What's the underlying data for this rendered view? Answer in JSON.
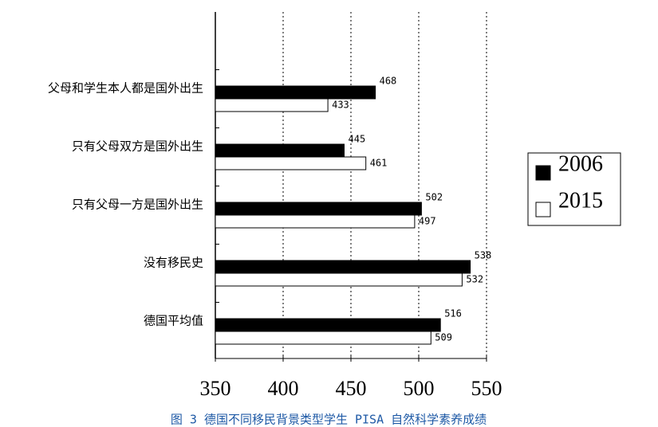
{
  "chart_data": {
    "type": "bar",
    "orientation": "horizontal",
    "title": "图 3 德国不同移民背景类型学生 PISA 自然科学素养成绩",
    "categories": [
      "父母和学生本人都是国外出生",
      "只有父母双方是国外出生",
      "只有父母一方是国外出生",
      "没有移民史",
      "德国平均值"
    ],
    "series": [
      {
        "name": "2006",
        "color": "#000000",
        "values": [
          468,
          445,
          502,
          538,
          516
        ]
      },
      {
        "name": "2015",
        "color": "#ffffff",
        "values": [
          433,
          461,
          497,
          532,
          509
        ]
      }
    ],
    "xlim": [
      350,
      550
    ],
    "xticks": [
      350,
      400,
      450,
      500,
      550
    ],
    "grid": true,
    "legend": "right"
  }
}
